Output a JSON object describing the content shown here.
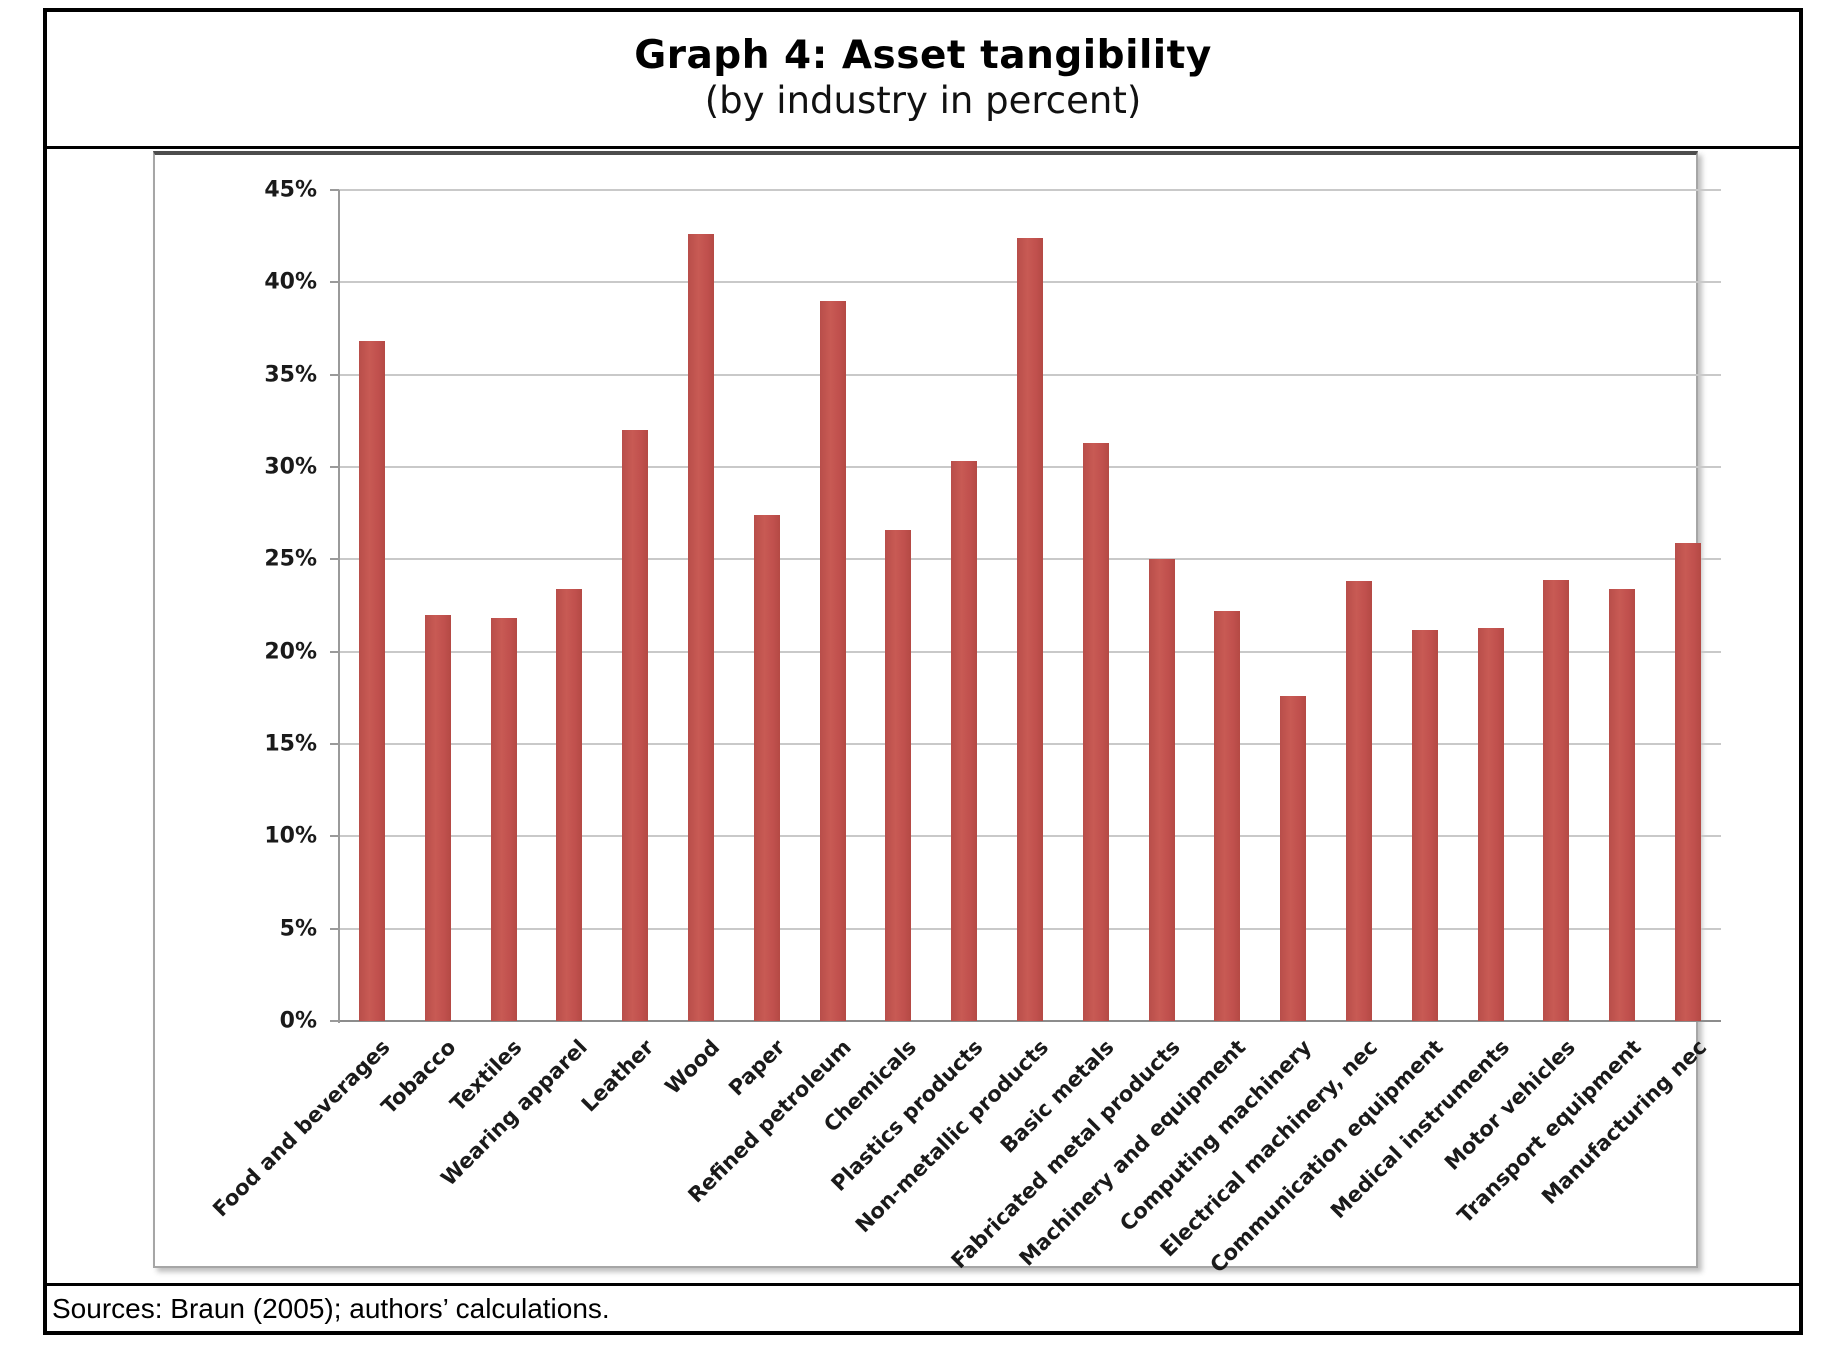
{
  "title": "Graph 4: Asset tangibility",
  "subtitle": "(by industry in percent)",
  "source_note": "Sources: Braun (2005); authors’ calculations.",
  "colors": {
    "bar": "#C0504D",
    "gridline": "#C9C9C9",
    "axis": "#9A9A9A",
    "text": "#1A1A1A"
  },
  "chart_data": {
    "type": "bar",
    "title": "Graph 4: Asset tangibility",
    "subtitle": "(by industry in percent)",
    "xlabel": "",
    "ylabel": "",
    "ylim": [
      0,
      45
    ],
    "y_tick_step": 5,
    "y_tick_labels": [
      "0%",
      "5%",
      "10%",
      "15%",
      "20%",
      "25%",
      "30%",
      "35%",
      "40%",
      "45%"
    ],
    "grid": true,
    "legend_position": "none",
    "categories": [
      "Food and beverages",
      "Tobacco",
      "Textiles",
      "Wearing apparel",
      "Leather",
      "Wood",
      "Paper",
      "Refined petroleum",
      "Chemicals",
      "Plastics products",
      "Non-metallic products",
      "Basic metals",
      "Fabricated metal products",
      "Machinery and equipment",
      "Computing machinery",
      "Electrical machinery, nec",
      "Communication equipment",
      "Medical instruments",
      "Motor vehicles",
      "Transport equipment",
      "Manufacturing nec"
    ],
    "values": [
      36.8,
      22.0,
      21.8,
      23.4,
      32.0,
      42.6,
      27.4,
      39.0,
      26.6,
      30.3,
      42.4,
      31.3,
      25.0,
      22.2,
      17.6,
      23.8,
      21.2,
      21.3,
      23.9,
      23.4,
      25.9
    ]
  }
}
